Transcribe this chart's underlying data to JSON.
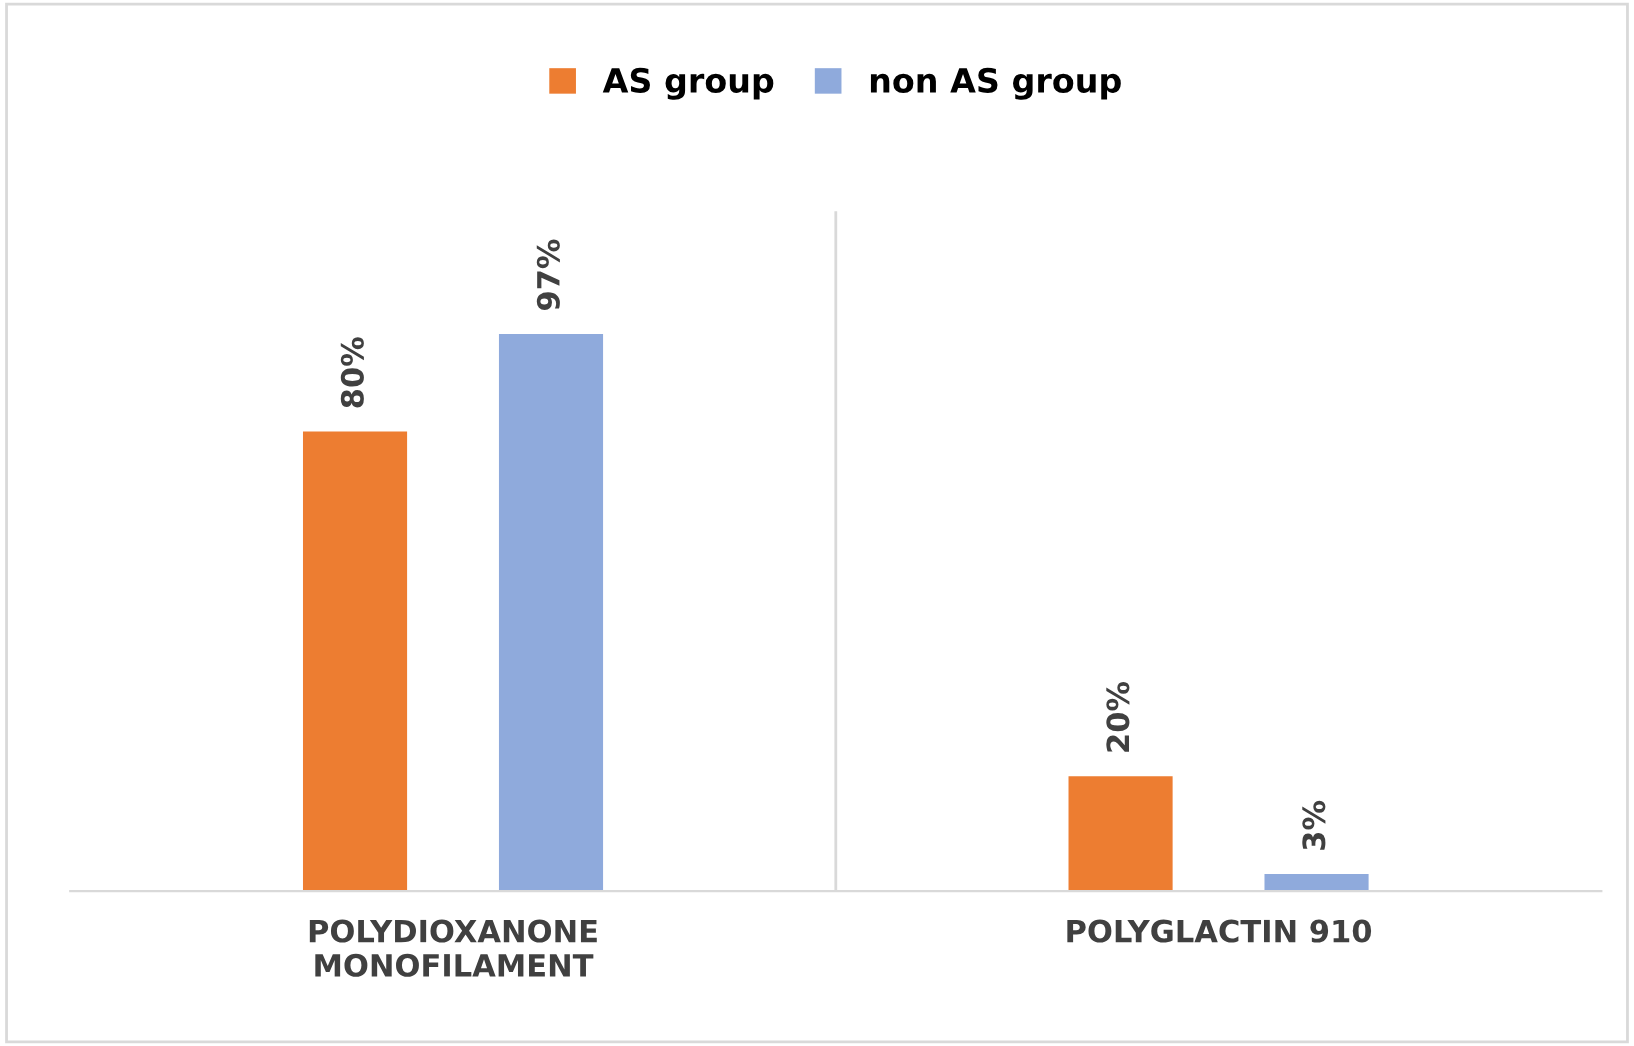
{
  "chart_data": {
    "type": "bar",
    "categories": [
      "POLYDIOXANONE\nMONOFILAMENT",
      "POLYGLACTIN 910"
    ],
    "series": [
      {
        "name": "AS group",
        "color": "#ed7d31",
        "values": [
          80,
          20
        ],
        "value_labels": [
          "80%",
          "20%"
        ]
      },
      {
        "name": "non AS group",
        "color": "#8faadc",
        "values": [
          97,
          3
        ],
        "value_labels": [
          "97%",
          "3%"
        ]
      }
    ],
    "grid": "x",
    "legend": "top",
    "tick_labels": "x"
  }
}
